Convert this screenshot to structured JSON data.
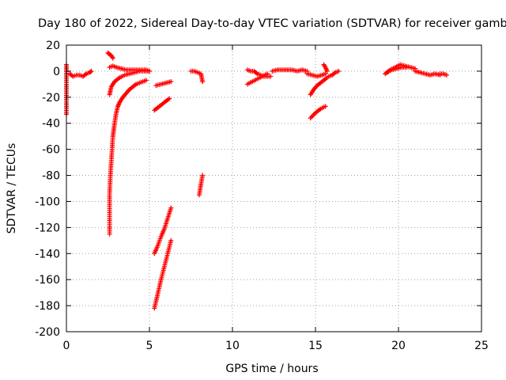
{
  "chart_data": {
    "type": "scatter",
    "title": "Day 180 of 2022, Sidereal Day-to-day VTEC variation (SDTVAR) for receiver gamb",
    "xlabel": "GPS time / hours",
    "ylabel": "SDTVAR / TECUs",
    "xlim": [
      0,
      25
    ],
    "ylim": [
      -200,
      20
    ],
    "xticks": [
      0,
      5,
      10,
      15,
      20,
      25
    ],
    "yticks": [
      -200,
      -180,
      -160,
      -140,
      -120,
      -100,
      -80,
      -60,
      -40,
      -20,
      0,
      20
    ],
    "grid": true,
    "marker": "+",
    "colors": {
      "series": "#ff0000",
      "grid": "#a0a0a0",
      "axis": "#000000"
    },
    "series": [
      {
        "name": "SDTVAR",
        "segments": [
          {
            "x": [
              0.0,
              0.0,
              0.0,
              0.0
            ],
            "y": [
              5,
              -3,
              -23,
              -33
            ]
          },
          {
            "x": [
              0.2,
              0.4,
              0.6,
              0.8,
              1.0,
              1.2,
              1.4,
              1.5
            ],
            "y": [
              -2,
              -4,
              -3,
              -3,
              -4,
              -2,
              -1,
              0
            ]
          },
          {
            "x": [
              2.6,
              2.6,
              2.6,
              2.65,
              2.7,
              2.75,
              2.8,
              2.85,
              2.9,
              3.0,
              3.1,
              3.2,
              3.4,
              3.6,
              3.8,
              4.0,
              4.2,
              4.4,
              4.6,
              4.8
            ],
            "y": [
              -125,
              -110,
              -95,
              -80,
              -70,
              -60,
              -50,
              -45,
              -40,
              -32,
              -27,
              -24,
              -20,
              -17,
              -14,
              -12,
              -10,
              -9,
              -8,
              -7
            ]
          },
          {
            "x": [
              2.6,
              2.7,
              2.9,
              3.2,
              3.5,
              3.8,
              4.1,
              4.4,
              4.7,
              5.0
            ],
            "y": [
              -18,
              -12,
              -8,
              -5,
              -3,
              -2,
              -1,
              0,
              0,
              0
            ]
          },
          {
            "x": [
              2.5,
              2.6,
              2.7,
              2.8
            ],
            "y": [
              14,
              13,
              12,
              10
            ]
          },
          {
            "x": [
              2.6,
              2.8,
              3.0,
              3.3,
              3.6,
              3.9,
              4.2,
              4.5,
              4.8,
              5.0
            ],
            "y": [
              3,
              4,
              3,
              2,
              1,
              1,
              1,
              1,
              1,
              0
            ]
          },
          {
            "x": [
              5.3,
              5.5,
              5.7,
              5.9,
              6.1,
              6.3
            ],
            "y": [
              -140,
              -134,
              -127,
              -121,
              -113,
              -105
            ]
          },
          {
            "x": [
              5.3,
              5.5,
              5.7,
              5.9,
              6.1,
              6.3
            ],
            "y": [
              -182,
              -171,
              -160,
              -150,
              -140,
              -130
            ]
          },
          {
            "x": [
              5.3,
              5.6,
              5.9,
              6.2
            ],
            "y": [
              -30,
              -27,
              -24,
              -21
            ]
          },
          {
            "x": [
              5.4,
              5.7,
              6.0,
              6.3
            ],
            "y": [
              -11,
              -10,
              -9,
              -8
            ]
          },
          {
            "x": [
              7.5,
              7.7,
              7.9,
              8.1,
              8.2
            ],
            "y": [
              0,
              0,
              -1,
              -2,
              -8
            ]
          },
          {
            "x": [
              8.0,
              8.1,
              8.2
            ],
            "y": [
              -95,
              -87,
              -80
            ]
          },
          {
            "x": [
              10.9,
              11.1,
              11.3,
              11.5,
              11.7,
              11.9,
              12.1,
              12.3
            ],
            "y": [
              1,
              0,
              0,
              -2,
              -3,
              -4,
              -4,
              -4
            ]
          },
          {
            "x": [
              10.9,
              11.2,
              11.5,
              11.8,
              12.1
            ],
            "y": [
              -10,
              -8,
              -6,
              -4,
              -2
            ]
          },
          {
            "x": [
              12.4,
              12.7,
              13.0,
              13.3,
              13.6,
              13.9,
              14.2,
              14.5
            ],
            "y": [
              0,
              1,
              1,
              1,
              1,
              0,
              1,
              0
            ]
          },
          {
            "x": [
              14.5,
              14.8,
              15.1,
              15.4,
              15.6
            ],
            "y": [
              -2,
              -3,
              -4,
              -3,
              -2
            ]
          },
          {
            "x": [
              14.7,
              14.9,
              15.1,
              15.3,
              15.5,
              15.7
            ],
            "y": [
              -18,
              -14,
              -11,
              -9,
              -7,
              -5
            ]
          },
          {
            "x": [
              15.5,
              15.6,
              15.7
            ],
            "y": [
              5,
              3,
              0
            ]
          },
          {
            "x": [
              14.7,
              15.0,
              15.3,
              15.6
            ],
            "y": [
              -36,
              -32,
              -29,
              -27
            ]
          },
          {
            "x": [
              15.8,
              16.0,
              16.2,
              16.4
            ],
            "y": [
              -4,
              -3,
              -1,
              0
            ]
          },
          {
            "x": [
              19.2,
              19.5,
              19.8,
              20.1,
              20.4,
              20.7,
              21.0
            ],
            "y": [
              -2,
              1,
              3,
              5,
              4,
              3,
              2
            ]
          },
          {
            "x": [
              19.3,
              19.6,
              19.9,
              20.2,
              20.5
            ],
            "y": [
              -1,
              1,
              2,
              3,
              3
            ]
          },
          {
            "x": [
              21.0,
              21.3,
              21.6,
              21.9,
              22.2,
              22.5
            ],
            "y": [
              0,
              -1,
              -2,
              -3,
              -2,
              -3
            ]
          },
          {
            "x": [
              22.5,
              22.7,
              22.9
            ],
            "y": [
              -2,
              -2,
              -3
            ]
          }
        ]
      }
    ]
  }
}
